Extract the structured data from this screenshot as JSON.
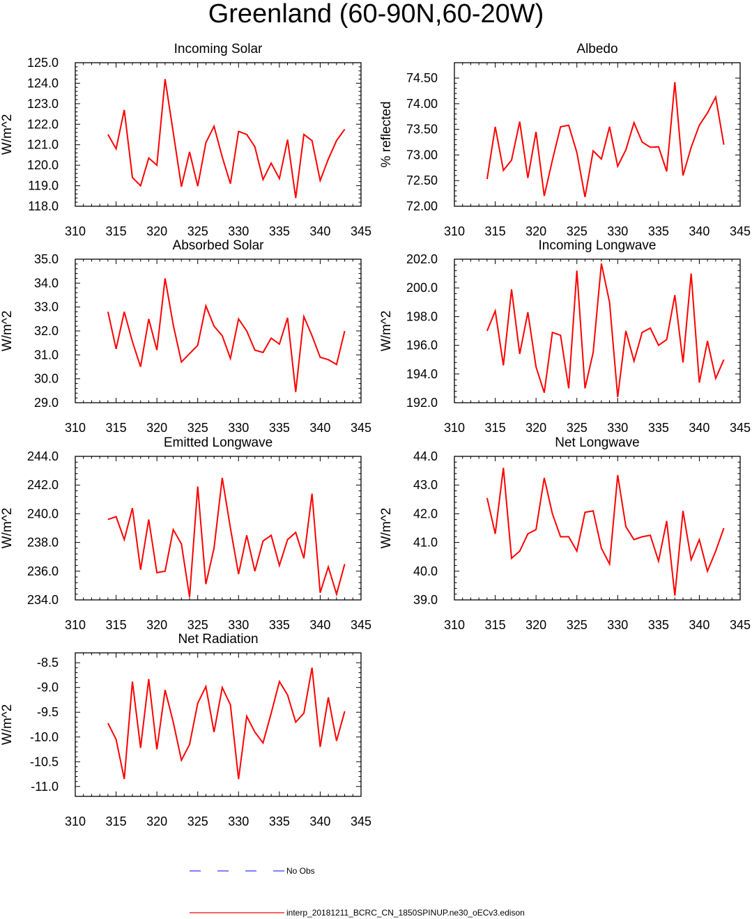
{
  "title": "Greenland (60-90N,60-20W)",
  "colors": {
    "model": "#ff0000",
    "obs": "#3333ff",
    "axis": "#000000"
  },
  "legend": {
    "obs_label": "No Obs",
    "model_label": "interp_20181211_BCRC_CN_1850SPINUP.ne30_oECv3.edison"
  },
  "chart_data": [
    {
      "type": "line",
      "title": "Incoming Solar",
      "ylabel": "W/m^2",
      "xlabel": "",
      "xlim": [
        310,
        345
      ],
      "x_ticks": [
        "310",
        "315",
        "320",
        "325",
        "330",
        "335",
        "340",
        "345"
      ],
      "ylim": [
        118.0,
        125.0
      ],
      "y_ticks": [
        "118.0",
        "119.0",
        "120.0",
        "121.0",
        "122.0",
        "123.0",
        "124.0",
        "125.0"
      ],
      "x": [
        314,
        315,
        316,
        317,
        318,
        319,
        320,
        321,
        322,
        323,
        324,
        325,
        326,
        327,
        328,
        329,
        330,
        331,
        332,
        333,
        334,
        335,
        336,
        337,
        338,
        339,
        340,
        341,
        342,
        343
      ],
      "series": [
        {
          "name": "interp_20181211_BCRC_CN_1850SPINUP.ne30_oECv3.edison",
          "values": [
            121.5,
            120.8,
            122.7,
            119.4,
            119.0,
            120.35,
            120.0,
            124.2,
            121.6,
            118.95,
            120.65,
            118.98,
            121.1,
            121.9,
            120.4,
            119.1,
            121.65,
            121.5,
            120.9,
            119.3,
            120.1,
            119.35,
            121.25,
            118.4,
            121.5,
            121.2,
            119.25,
            120.3,
            121.2,
            121.75
          ]
        }
      ]
    },
    {
      "type": "line",
      "title": "Albedo",
      "ylabel": "% reflected",
      "xlabel": "",
      "xlim": [
        310,
        345
      ],
      "x_ticks": [
        "310",
        "315",
        "320",
        "325",
        "330",
        "335",
        "340",
        "345"
      ],
      "ylim": [
        72.0,
        74.8
      ],
      "y_ticks": [
        "72.00",
        "72.50",
        "73.00",
        "73.50",
        "74.00",
        "74.50"
      ],
      "x": [
        314,
        315,
        316,
        317,
        318,
        319,
        320,
        321,
        322,
        323,
        324,
        325,
        326,
        327,
        328,
        329,
        330,
        331,
        332,
        333,
        334,
        335,
        336,
        337,
        338,
        339,
        340,
        341,
        342,
        343
      ],
      "series": [
        {
          "name": "interp_20181211_BCRC_CN_1850SPINUP.ne30_oECv3.edison",
          "values": [
            72.53,
            73.55,
            72.7,
            72.9,
            73.65,
            72.55,
            73.45,
            72.2,
            72.9,
            73.55,
            73.58,
            73.05,
            72.18,
            73.08,
            72.92,
            73.55,
            72.78,
            73.1,
            73.63,
            73.25,
            73.15,
            73.16,
            72.68,
            74.42,
            72.6,
            73.15,
            73.58,
            73.82,
            74.13,
            73.2
          ]
        }
      ]
    },
    {
      "type": "line",
      "title": "Absorbed Solar",
      "ylabel": "W/m^2",
      "xlabel": "",
      "xlim": [
        310,
        345
      ],
      "x_ticks": [
        "310",
        "315",
        "320",
        "325",
        "330",
        "335",
        "340",
        "345"
      ],
      "ylim": [
        29.0,
        35.0
      ],
      "y_ticks": [
        "29.0",
        "30.0",
        "31.0",
        "32.0",
        "33.0",
        "34.0",
        "35.0"
      ],
      "x": [
        314,
        315,
        316,
        317,
        318,
        319,
        320,
        321,
        322,
        323,
        324,
        325,
        326,
        327,
        328,
        329,
        330,
        331,
        332,
        333,
        334,
        335,
        336,
        337,
        338,
        339,
        340,
        341,
        342,
        343
      ],
      "series": [
        {
          "name": "interp_20181211_BCRC_CN_1850SPINUP.ne30_oECv3.edison",
          "values": [
            32.8,
            31.25,
            32.8,
            31.55,
            30.5,
            32.5,
            31.2,
            34.2,
            32.25,
            30.7,
            31.05,
            31.4,
            33.05,
            32.2,
            31.8,
            30.85,
            32.5,
            32.0,
            31.2,
            31.1,
            31.7,
            31.45,
            32.55,
            29.45,
            32.6,
            31.8,
            30.9,
            30.8,
            30.6,
            32.0
          ]
        }
      ]
    },
    {
      "type": "line",
      "title": "Incoming Longwave",
      "ylabel": "W/m^2",
      "xlabel": "",
      "xlim": [
        310,
        345
      ],
      "x_ticks": [
        "310",
        "315",
        "320",
        "325",
        "330",
        "335",
        "340",
        "345"
      ],
      "ylim": [
        192.0,
        202.0
      ],
      "y_ticks": [
        "192.0",
        "194.0",
        "196.0",
        "198.0",
        "200.0",
        "202.0"
      ],
      "x": [
        314,
        315,
        316,
        317,
        318,
        319,
        320,
        321,
        322,
        323,
        324,
        325,
        326,
        327,
        328,
        329,
        330,
        331,
        332,
        333,
        334,
        335,
        336,
        337,
        338,
        339,
        340,
        341,
        342,
        343
      ],
      "series": [
        {
          "name": "interp_20181211_BCRC_CN_1850SPINUP.ne30_oECv3.edison",
          "values": [
            197.0,
            198.4,
            194.6,
            199.9,
            195.4,
            198.3,
            194.5,
            192.7,
            196.9,
            196.7,
            193.0,
            201.2,
            193.0,
            195.5,
            201.7,
            199.0,
            192.4,
            197.0,
            194.9,
            196.9,
            197.2,
            196.0,
            196.4,
            199.5,
            194.8,
            201.0,
            193.4,
            196.3,
            193.7,
            195.0
          ]
        }
      ]
    },
    {
      "type": "line",
      "title": "Emitted Longwave",
      "ylabel": "W/m^2",
      "xlabel": "",
      "xlim": [
        310,
        345
      ],
      "x_ticks": [
        "310",
        "315",
        "320",
        "325",
        "330",
        "335",
        "340",
        "345"
      ],
      "ylim": [
        234.0,
        244.0
      ],
      "y_ticks": [
        "234.0",
        "236.0",
        "238.0",
        "240.0",
        "242.0",
        "244.0"
      ],
      "x": [
        314,
        315,
        316,
        317,
        318,
        319,
        320,
        321,
        322,
        323,
        324,
        325,
        326,
        327,
        328,
        329,
        330,
        331,
        332,
        333,
        334,
        335,
        336,
        337,
        338,
        339,
        340,
        341,
        342,
        343
      ],
      "series": [
        {
          "name": "interp_20181211_BCRC_CN_1850SPINUP.ne30_oECv3.edison",
          "values": [
            239.6,
            239.8,
            238.2,
            240.4,
            236.1,
            239.6,
            235.9,
            236.0,
            238.9,
            237.9,
            234.2,
            241.9,
            235.1,
            237.6,
            242.5,
            239.0,
            235.8,
            238.5,
            236.0,
            238.1,
            238.5,
            236.4,
            238.2,
            238.7,
            236.9,
            241.4,
            234.5,
            236.3,
            234.4,
            236.5
          ]
        }
      ]
    },
    {
      "type": "line",
      "title": "Net Longwave",
      "ylabel": "W/m^2",
      "xlabel": "",
      "xlim": [
        310,
        345
      ],
      "x_ticks": [
        "310",
        "315",
        "320",
        "325",
        "330",
        "335",
        "340",
        "345"
      ],
      "ylim": [
        39.0,
        44.0
      ],
      "y_ticks": [
        "39.0",
        "40.0",
        "41.0",
        "42.0",
        "43.0",
        "44.0"
      ],
      "x": [
        314,
        315,
        316,
        317,
        318,
        319,
        320,
        321,
        322,
        323,
        324,
        325,
        326,
        327,
        328,
        329,
        330,
        331,
        332,
        333,
        334,
        335,
        336,
        337,
        338,
        339,
        340,
        341,
        342,
        343
      ],
      "series": [
        {
          "name": "interp_20181211_BCRC_CN_1850SPINUP.ne30_oECv3.edison",
          "values": [
            42.55,
            41.3,
            43.6,
            40.45,
            40.7,
            41.3,
            41.45,
            43.25,
            42.0,
            41.2,
            41.2,
            40.7,
            42.05,
            42.1,
            40.8,
            40.25,
            43.35,
            41.55,
            41.1,
            41.2,
            41.25,
            40.35,
            41.75,
            39.15,
            42.1,
            40.4,
            41.1,
            40.0,
            40.7,
            41.5
          ]
        }
      ]
    },
    {
      "type": "line",
      "title": "Net Radiation",
      "ylabel": "W/m^2",
      "xlabel": "",
      "xlim": [
        310,
        345
      ],
      "x_ticks": [
        "310",
        "315",
        "320",
        "325",
        "330",
        "335",
        "340",
        "345"
      ],
      "ylim": [
        -11.2,
        -8.3
      ],
      "y_ticks": [
        "-11.0",
        "-10.5",
        "-10.0",
        "-9.5",
        "-9.0",
        "-8.5"
      ],
      "y_tick_values": [
        -11.0,
        -10.5,
        -10.0,
        -9.5,
        -9.0,
        -8.5
      ],
      "x": [
        314,
        315,
        316,
        317,
        318,
        319,
        320,
        321,
        322,
        323,
        324,
        325,
        326,
        327,
        328,
        329,
        330,
        331,
        332,
        333,
        334,
        335,
        336,
        337,
        338,
        339,
        340,
        341,
        342,
        343
      ],
      "series": [
        {
          "name": "interp_20181211_BCRC_CN_1850SPINUP.ne30_oECv3.edison",
          "values": [
            -9.72,
            -10.05,
            -10.85,
            -8.88,
            -10.22,
            -8.83,
            -10.25,
            -9.05,
            -9.7,
            -10.47,
            -10.15,
            -9.32,
            -8.98,
            -9.9,
            -9.0,
            -9.35,
            -10.85,
            -9.58,
            -9.9,
            -10.12,
            -9.52,
            -8.88,
            -9.15,
            -9.7,
            -9.52,
            -8.6,
            -10.2,
            -9.2,
            -10.08,
            -9.48
          ]
        }
      ]
    }
  ]
}
